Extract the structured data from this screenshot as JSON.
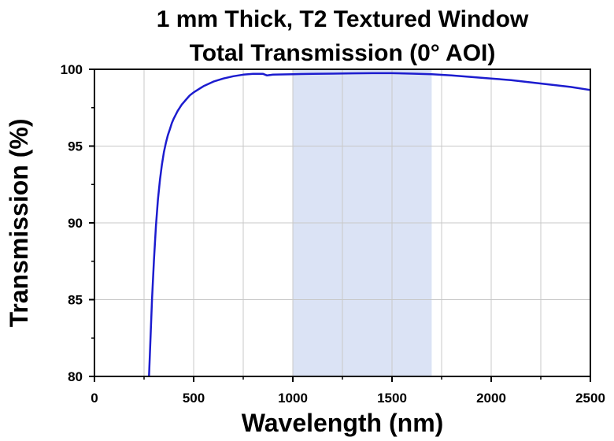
{
  "chart_data": {
    "type": "line",
    "title_line1": "1 mm Thick, T2 Textured Window",
    "title_line2": "Total Transmission (0° AOI)",
    "xlabel": "Wavelength (nm)",
    "ylabel": "Transmission (%)",
    "xlim": [
      0,
      2500
    ],
    "ylim": [
      80,
      100
    ],
    "xticks": [
      "0",
      "500",
      "1000",
      "1500",
      "2000",
      "2500"
    ],
    "yticks": [
      "80",
      "85",
      "90",
      "95",
      "100"
    ],
    "grid": true,
    "highlight_band": {
      "x_start": 1000,
      "x_end": 1700,
      "color": "#dbe3f5"
    },
    "series": [
      {
        "color": "#1c1ccf",
        "x": [
          275,
          280,
          290,
          300,
          310,
          320,
          330,
          340,
          350,
          360,
          370,
          380,
          390,
          400,
          420,
          440,
          460,
          480,
          500,
          550,
          600,
          650,
          700,
          750,
          800,
          850,
          870,
          900,
          1000,
          1100,
          1200,
          1300,
          1400,
          1500,
          1600,
          1700,
          1800,
          1900,
          2000,
          2100,
          2200,
          2300,
          2400,
          2500
        ],
        "y": [
          80.0,
          81.7,
          85.0,
          87.6,
          89.8,
          91.5,
          92.8,
          93.8,
          94.6,
          95.2,
          95.7,
          96.1,
          96.5,
          96.8,
          97.3,
          97.7,
          98.0,
          98.3,
          98.5,
          98.9,
          99.2,
          99.4,
          99.55,
          99.65,
          99.7,
          99.7,
          99.6,
          99.65,
          99.68,
          99.7,
          99.72,
          99.74,
          99.75,
          99.75,
          99.72,
          99.68,
          99.6,
          99.5,
          99.4,
          99.3,
          99.15,
          99.0,
          98.85,
          98.65
        ]
      }
    ]
  },
  "colors": {
    "grid": "#c8c8c8",
    "axis": "#000000",
    "line": "#1c1ccf",
    "band": "#dbe3f5"
  }
}
